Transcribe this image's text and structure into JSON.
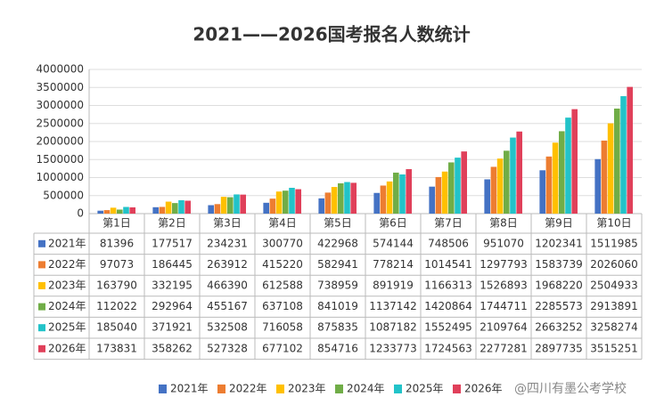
{
  "chart_data": {
    "type": "bar",
    "title": "2021——2026国考报名人数统计",
    "categories": [
      "第1日",
      "第2日",
      "第3日",
      "第4日",
      "第5日",
      "第6日",
      "第7日",
      "第8日",
      "第9日",
      "第10日"
    ],
    "series": [
      {
        "name": "2021年",
        "color": "#4472c4",
        "values": [
          81396,
          177517,
          234231,
          300770,
          422968,
          574144,
          748506,
          951070,
          1202341,
          1511985
        ]
      },
      {
        "name": "2022年",
        "color": "#ed7d31",
        "values": [
          97073,
          186445,
          263912,
          415220,
          582941,
          778214,
          1014541,
          1297793,
          1583739,
          2026060
        ]
      },
      {
        "name": "2023年",
        "color": "#ffc000",
        "values": [
          163790,
          332195,
          466390,
          612588,
          738959,
          891919,
          1166313,
          1526893,
          1968220,
          2504933
        ]
      },
      {
        "name": "2024年",
        "color": "#70ad47",
        "values": [
          112022,
          292964,
          455167,
          637108,
          841019,
          1137142,
          1420864,
          1744711,
          2285573,
          2913891
        ]
      },
      {
        "name": "2025年",
        "color": "#22c3c9",
        "values": [
          185040,
          371921,
          532508,
          716058,
          875835,
          1087182,
          1552495,
          2109764,
          2663252,
          3258274
        ]
      },
      {
        "name": "2026年",
        "color": "#e0405a",
        "values": [
          173831,
          358262,
          527328,
          677102,
          854716,
          1233773,
          1724563,
          2277281,
          2897735,
          3515251
        ]
      }
    ],
    "ylim": [
      0,
      4000000
    ],
    "yticks": [
      0,
      500000,
      1000000,
      1500000,
      2000000,
      2500000,
      3000000,
      3500000,
      4000000
    ],
    "grid": true,
    "watermark": "@四川有墨公考学校"
  }
}
